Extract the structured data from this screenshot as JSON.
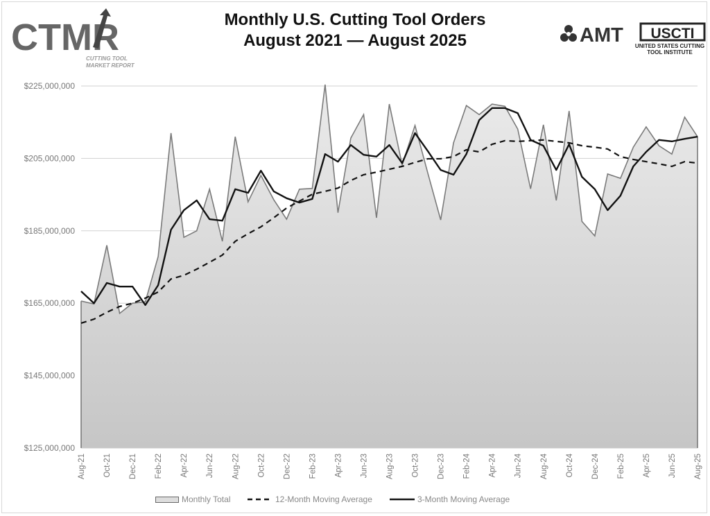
{
  "header": {
    "title_line1": "Monthly U.S. Cutting Tool Orders",
    "title_line2": "August 2021 — August 2025",
    "logo_left": "CTMR",
    "logo_left_sub1": "CUTTING TOOL",
    "logo_left_sub2": "MARKET REPORT",
    "logo_right_1": "AMT",
    "logo_right_2": "USCTI",
    "logo_right_2_sub": "UNITED STATES CUTTING TOOL INSTITUTE"
  },
  "colors": {
    "area_fill_top": "#ebebeb",
    "area_fill_bottom": "#c6c6c6",
    "monthly_line": "#7a7a7a",
    "ma_line": "#111111",
    "grid": "#d0d0d0"
  },
  "chart_data": {
    "type": "area",
    "title": "Monthly U.S. Cutting Tool Orders August 2021 — August 2025",
    "ylim": [
      125000000,
      225000000
    ],
    "y_ticks": [
      125000000,
      145000000,
      165000000,
      185000000,
      205000000,
      225000000
    ],
    "y_tick_labels": [
      "$125,000,000",
      "$145,000,000",
      "$165,000,000",
      "$185,000,000",
      "$205,000,000",
      "$225,000,000"
    ],
    "grid": true,
    "legend_placement": "bottom",
    "x": [
      "Aug-21",
      "Sep-21",
      "Oct-21",
      "Nov-21",
      "Dec-21",
      "Jan-22",
      "Feb-22",
      "Mar-22",
      "Apr-22",
      "May-22",
      "Jun-22",
      "Jul-22",
      "Aug-22",
      "Sep-22",
      "Oct-22",
      "Nov-22",
      "Dec-22",
      "Jan-23",
      "Feb-23",
      "Mar-23",
      "Apr-23",
      "May-23",
      "Jun-23",
      "Jul-23",
      "Aug-23",
      "Sep-23",
      "Oct-23",
      "Nov-23",
      "Dec-23",
      "Jan-24",
      "Feb-24",
      "Mar-24",
      "Apr-24",
      "May-24",
      "Jun-24",
      "Jul-24",
      "Aug-24",
      "Sep-24",
      "Oct-24",
      "Nov-24",
      "Dec-24",
      "Jan-25",
      "Feb-25",
      "Mar-25",
      "Apr-25",
      "May-25",
      "Jun-25",
      "Jul-25",
      "Aug-25"
    ],
    "x_tick_labels": [
      "Aug-21",
      "Oct-21",
      "Dec-21",
      "Feb-22",
      "Apr-22",
      "Jun-22",
      "Aug-22",
      "Oct-22",
      "Dec-22",
      "Feb-23",
      "Apr-23",
      "Jun-23",
      "Aug-23",
      "Oct-23",
      "Dec-23",
      "Feb-24",
      "Apr-24",
      "Jun-24",
      "Aug-24",
      "Oct-24",
      "Dec-24",
      "Feb-25",
      "Apr-25",
      "Jun-25",
      "Aug-25"
    ],
    "series": [
      {
        "name": "Monthly Total",
        "style": "area",
        "values": [
          165.6,
          164.8,
          181.0,
          162.2,
          165.0,
          165.4,
          177.9,
          212.0,
          183.2,
          185.0,
          196.5,
          182.1,
          211.0,
          193.0,
          200.3,
          193.6,
          188.2,
          196.5,
          196.7,
          225.4,
          190.0,
          210.6,
          217.1,
          188.6,
          220.0,
          203.2,
          214.1,
          200.9,
          188.0,
          209.3,
          219.6,
          217.1,
          220.0,
          219.4,
          213.1,
          196.6,
          214.3,
          193.4,
          218.1,
          187.6,
          183.6,
          200.7,
          199.5,
          208.1,
          213.7,
          208.5,
          206.2,
          216.4,
          211.0
        ]
      },
      {
        "name": "12-Month Moving Average",
        "style": "dashed",
        "values": [
          159.5,
          160.6,
          162.5,
          164.1,
          165.0,
          166.4,
          168.1,
          171.7,
          172.7,
          174.4,
          176.3,
          178.3,
          182.1,
          184.2,
          186.1,
          188.6,
          191.3,
          193.2,
          195.1,
          195.9,
          196.8,
          198.9,
          200.5,
          201.2,
          202.0,
          202.8,
          203.9,
          204.9,
          204.9,
          205.5,
          207.4,
          206.8,
          208.9,
          209.9,
          209.7,
          209.9,
          210.1,
          209.7,
          209.3,
          208.5,
          208.1,
          207.6,
          205.5,
          204.7,
          204.1,
          203.5,
          202.8,
          204.1,
          203.7
        ]
      },
      {
        "name": "3-Month Moving Average",
        "style": "solid",
        "values": [
          168.3,
          165.0,
          170.6,
          169.6,
          169.6,
          164.5,
          170.0,
          185.3,
          190.7,
          193.4,
          188.2,
          187.8,
          196.5,
          195.5,
          201.6,
          195.9,
          194.0,
          192.8,
          193.8,
          206.2,
          204.1,
          208.7,
          206.0,
          205.5,
          208.7,
          203.7,
          212.0,
          207.0,
          201.8,
          200.5,
          206.2,
          215.6,
          218.9,
          218.9,
          217.5,
          210.1,
          208.5,
          201.8,
          208.9,
          199.9,
          196.5,
          190.7,
          194.7,
          202.8,
          206.8,
          210.1,
          209.7,
          210.4,
          211.0
        ]
      }
    ],
    "value_unit": "millions USD"
  }
}
